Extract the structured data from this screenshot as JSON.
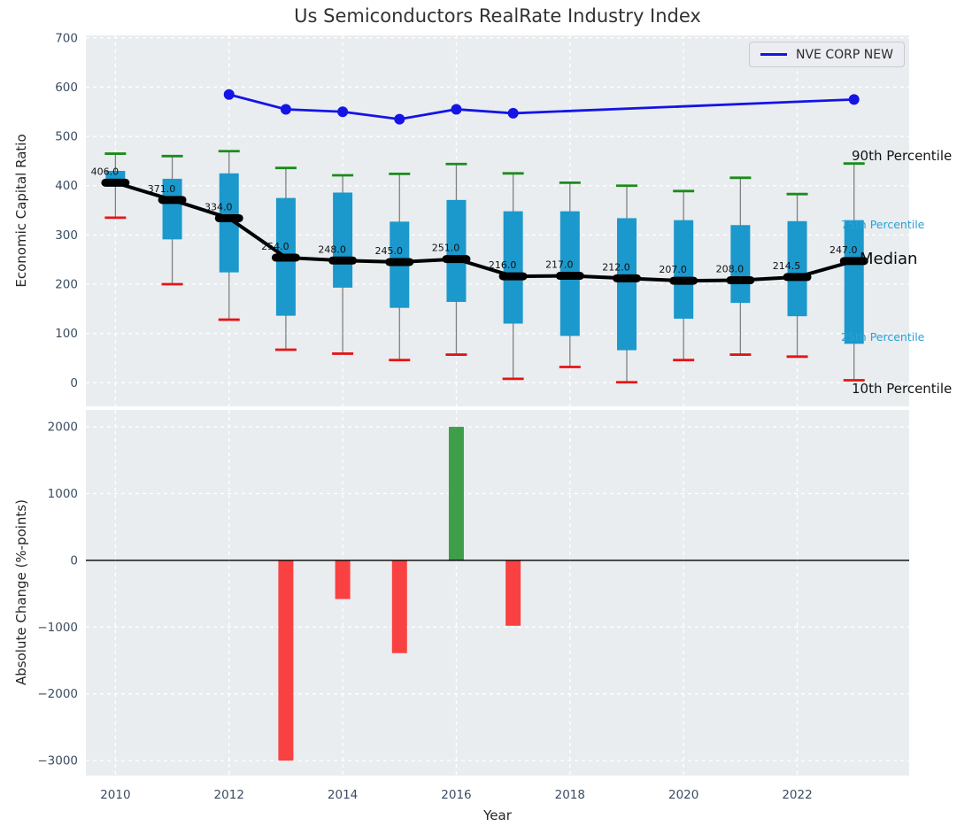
{
  "title": "Us Semiconductors RealRate Industry Index",
  "legend": {
    "label": "NVE CORP NEW"
  },
  "right_labels": {
    "p90": "90th Percentile",
    "p75": "75th Percentile",
    "median": "Median",
    "p25": "25th Percentile",
    "p10": "10th Percentile"
  },
  "colors": {
    "plot_bg": "#e9edf0",
    "grid": "#ffffff",
    "tick": "#3b4d63",
    "box": "#1b98cc",
    "whisker": "#808080",
    "cap_high": "#1a8c1a",
    "cap_low": "#e61414",
    "median_line": "#000000",
    "company_line": "#1414e6",
    "bar_negative": "#fa4141",
    "bar_positive": "#3f9e4a",
    "percentile_label_accent": "#29a1d5"
  },
  "chart_data": [
    {
      "type": "boxplot_line",
      "title": "Us Semiconductors RealRate Industry Index",
      "ylabel": "Economic Capital Ratio",
      "ylim": [
        -48,
        705
      ],
      "yticks": [
        0,
        100,
        200,
        300,
        400,
        500,
        600,
        700
      ],
      "grid": true,
      "legend_position": "upper right",
      "years": [
        2010,
        2011,
        2012,
        2013,
        2014,
        2015,
        2016,
        2017,
        2018,
        2019,
        2020,
        2021,
        2022,
        2023
      ],
      "median": [
        406.0,
        371.0,
        334.0,
        254.0,
        248.0,
        245.0,
        251.0,
        216.0,
        217.0,
        212.0,
        207.0,
        208.0,
        214.5,
        247.0
      ],
      "median_labels": [
        "406.0",
        "371.0",
        "334.0",
        "254.0",
        "248.0",
        "245.0",
        "251.0",
        "216.0",
        "217.0",
        "212.0",
        "207.0",
        "208.0",
        "214.5",
        "247.0"
      ],
      "p90": [
        465,
        460,
        470,
        436,
        421,
        424,
        444,
        425,
        406,
        400,
        389,
        416,
        383,
        445
      ],
      "p75": [
        430,
        414,
        425,
        375,
        386,
        327,
        371,
        348,
        348,
        334,
        330,
        320,
        328,
        330
      ],
      "p25": [
        398,
        291,
        224,
        136,
        193,
        152,
        164,
        120,
        95,
        66,
        130,
        162,
        135,
        79
      ],
      "p10": [
        335,
        200,
        128,
        67,
        59,
        46,
        57,
        8,
        32,
        1,
        46,
        57,
        53,
        5
      ],
      "series": [
        {
          "name": "NVE CORP NEW",
          "type": "line",
          "x": [
            2012,
            2013,
            2014,
            2015,
            2016,
            2017,
            2023
          ],
          "y": [
            585,
            555,
            550,
            535,
            555,
            547,
            575
          ]
        }
      ]
    },
    {
      "type": "bar",
      "ylabel": "Absolute Change (%-points)",
      "xlabel": "Year",
      "ylim": [
        -3224,
        2253
      ],
      "yticks": [
        2000,
        1000,
        0,
        -1000,
        -2000,
        -3000
      ],
      "xticks": [
        2010,
        2012,
        2014,
        2016,
        2018,
        2020,
        2022
      ],
      "x": [
        2013,
        2014,
        2015,
        2016,
        2017
      ],
      "values": [
        -3000,
        -580,
        -1390,
        2000,
        -980
      ],
      "bar_colors": [
        "negative",
        "negative",
        "negative",
        "positive",
        "negative"
      ]
    }
  ]
}
